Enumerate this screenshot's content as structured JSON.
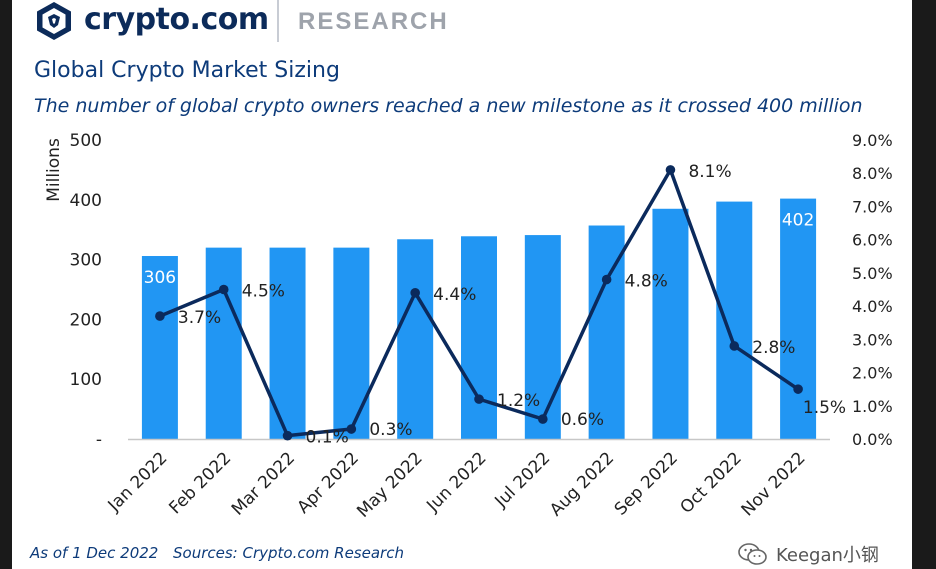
{
  "header": {
    "brand": "crypto.com",
    "section": "RESEARCH"
  },
  "title": "Global Crypto Market Sizing",
  "subtitle": "The number of global crypto owners reached a new milestone as it crossed 400 million",
  "footer": {
    "as_of": "As of 1 Dec 2022",
    "sources": "Sources: Crypto.com Research"
  },
  "watermark": "Keegan小钢",
  "colors": {
    "bar": "#2196f3",
    "line": "#0b2a5c",
    "text": "#0d3b7a",
    "axis_text": "#222222"
  },
  "icons": [
    "crypto-com-lion-logo-icon",
    "wechat-icon"
  ],
  "chart_data": {
    "type": "bar",
    "categories": [
      "Jan 2022",
      "Feb 2022",
      "Mar 2022",
      "Apr 2022",
      "May 2022",
      "Jun 2022",
      "Jul 2022",
      "Aug 2022",
      "Sep 2022",
      "Oct 2022",
      "Nov 2022"
    ],
    "series": [
      {
        "type": "bar",
        "axis": "left",
        "values": [
          306,
          320,
          320,
          320,
          334,
          339,
          341,
          357,
          385,
          397,
          402
        ],
        "data_labels": [
          "306",
          "",
          "",
          "",
          "",
          "",
          "",
          "",
          "",
          "",
          "402"
        ]
      },
      {
        "type": "line",
        "axis": "right",
        "values": [
          3.7,
          4.5,
          0.1,
          0.3,
          4.4,
          1.2,
          0.6,
          4.8,
          8.1,
          2.8,
          1.5
        ],
        "data_labels": [
          "3.7%",
          "4.5%",
          "0.1%",
          "0.3%",
          "4.4%",
          "1.2%",
          "0.6%",
          "4.8%",
          "8.1%",
          "2.8%",
          "1.5%"
        ]
      }
    ],
    "ylabel": "Millions",
    "ylim": [
      0,
      500
    ],
    "yticks": [
      "-",
      "100",
      "200",
      "300",
      "400",
      "500"
    ],
    "y2lim": [
      0,
      9
    ],
    "y2ticks": [
      "0.0%",
      "1.0%",
      "2.0%",
      "3.0%",
      "4.0%",
      "5.0%",
      "6.0%",
      "7.0%",
      "8.0%",
      "9.0%"
    ],
    "grid": false,
    "legend": "none"
  }
}
